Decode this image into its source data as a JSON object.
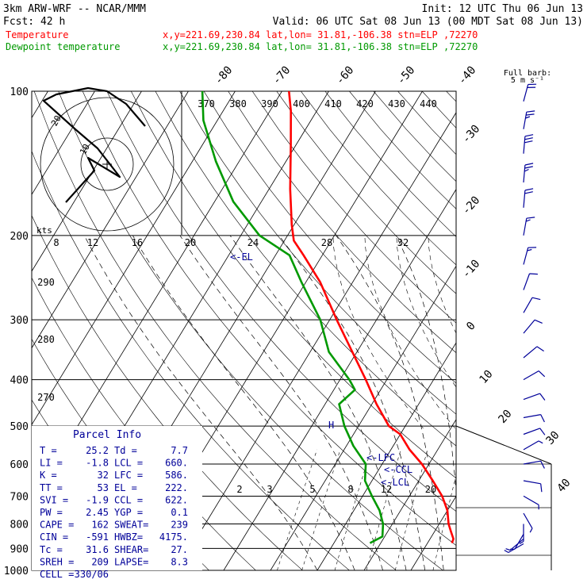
{
  "header": {
    "model": "3km ARW-WRF -- NCAR/MMM",
    "init": "Init: 12 UTC Thu 06 Jun 13",
    "fcst": "Fcst:   42 h",
    "valid": "Valid: 06 UTC Sat 08 Jun 13 (00 MDT Sat 08 Jun 13)",
    "legend": [
      {
        "label": "Temperature",
        "color": "#ff0000",
        "info": "x,y=221.69,230.84   lat,lon= 31.81,-106.38   stn=ELP ,72270"
      },
      {
        "label": "Dewpoint temperature",
        "color": "#009900",
        "info": "x,y=221.69,230.84   lat,lon= 31.81,-106.38   stn=ELP ,72270"
      }
    ]
  },
  "full_barb": {
    "line1": "Full barb:",
    "line2": "5 m s⁻¹"
  },
  "hodograph": {
    "unit_label": "kts",
    "ring_labels": [
      "10",
      "20"
    ]
  },
  "parcel": {
    "title": "Parcel Info",
    "rows": [
      [
        "T  =",
        "25.2",
        "Td =",
        "7.7"
      ],
      [
        "LI =",
        "-1.8",
        "LCL =",
        "660."
      ],
      [
        "K  =",
        "32",
        "LFC =",
        "586."
      ],
      [
        "TT =",
        "53",
        "EL =",
        "222."
      ],
      [
        "SVI =",
        "-1.9",
        "CCL =",
        "622."
      ],
      [
        "PW =",
        "2.45",
        "YGP =",
        "0.1"
      ],
      [
        "CAPE =",
        "162",
        "SWEAT=",
        "239"
      ],
      [
        "CIN =",
        "-591",
        "HWBZ=",
        "4175."
      ],
      [
        "Tc =",
        "31.6",
        "SHEAR=",
        "27."
      ],
      [
        "SREH =",
        "209",
        "LAPSE=",
        "8.3"
      ],
      [
        "CELL =",
        "330/06",
        "",
        ""
      ]
    ]
  },
  "chart_data": {
    "type": "line",
    "chart_kind": "skew-T log-p sounding",
    "pressure_levels": [
      100,
      200,
      300,
      400,
      500,
      600,
      700,
      800,
      900,
      1000
    ],
    "pressure_range": [
      100,
      1000
    ],
    "isotherm_labels": [
      -80,
      -70,
      -60,
      -50,
      -40,
      -30,
      -20,
      -10,
      0,
      10,
      20,
      30,
      40
    ],
    "theta_labels": [
      370,
      380,
      390,
      400,
      410,
      420,
      430,
      440
    ],
    "theta_left_labels": [
      290,
      280,
      270
    ],
    "mixing_ratio_labels": [
      "8",
      "12",
      "16",
      "20",
      "24",
      "28",
      "32"
    ],
    "mixing_ratio_low_labels": [
      "2",
      "3",
      "5",
      "8",
      "12",
      "20"
    ],
    "annotations": [
      "<-EL",
      "<-LFC",
      "<-CCL",
      "<-LCL",
      "H"
    ],
    "series": [
      {
        "name": "Temperature",
        "color": "#ff0000",
        "points": [
          [
            877,
            25.2
          ],
          [
            860,
            25.0
          ],
          [
            830,
            23.5
          ],
          [
            800,
            22.0
          ],
          [
            750,
            20.0
          ],
          [
            700,
            17.0
          ],
          [
            650,
            13.0
          ],
          [
            600,
            8.5
          ],
          [
            560,
            4.0
          ],
          [
            520,
            0.0
          ],
          [
            500,
            -3.5
          ],
          [
            450,
            -9.0
          ],
          [
            400,
            -14.5
          ],
          [
            350,
            -21.0
          ],
          [
            300,
            -28.5
          ],
          [
            250,
            -37.0
          ],
          [
            220,
            -44.0
          ],
          [
            205,
            -48.0
          ],
          [
            190,
            -50.5
          ],
          [
            160,
            -55.5
          ],
          [
            130,
            -61.0
          ],
          [
            110,
            -65.5
          ],
          [
            100,
            -68.5
          ]
        ]
      },
      {
        "name": "Dewpoint temperature",
        "color": "#009900",
        "points": [
          [
            877,
            7.7
          ],
          [
            850,
            9.5
          ],
          [
            800,
            8.0
          ],
          [
            750,
            5.5
          ],
          [
            700,
            2.0
          ],
          [
            650,
            -1.5
          ],
          [
            600,
            -3.5
          ],
          [
            550,
            -8.5
          ],
          [
            500,
            -13.0
          ],
          [
            450,
            -17.0
          ],
          [
            420,
            -15.5
          ],
          [
            400,
            -18.0
          ],
          [
            350,
            -26.0
          ],
          [
            300,
            -32.0
          ],
          [
            250,
            -41.0
          ],
          [
            220,
            -47.0
          ],
          [
            200,
            -56.0
          ],
          [
            170,
            -66.0
          ],
          [
            140,
            -75.0
          ],
          [
            115,
            -83.0
          ],
          [
            100,
            -87.0
          ]
        ]
      }
    ],
    "hodograph_uv": [
      [
        -13,
        -12
      ],
      [
        -4,
        -2
      ],
      [
        -6,
        2
      ],
      [
        4,
        -4
      ],
      [
        -3,
        5
      ],
      [
        -10,
        11
      ],
      [
        -20,
        20
      ],
      [
        -16,
        22
      ],
      [
        -6,
        24
      ],
      [
        0,
        23
      ],
      [
        6,
        19
      ],
      [
        12,
        12
      ]
    ],
    "wind_barbs": [
      {
        "p": 880,
        "dir": 240,
        "spd": 5
      },
      {
        "p": 860,
        "dir": 230,
        "spd": 5
      },
      {
        "p": 840,
        "dir": 210,
        "spd": 5
      },
      {
        "p": 800,
        "dir": 180,
        "spd": 5
      },
      {
        "p": 760,
        "dir": 150,
        "spd": 5
      },
      {
        "p": 700,
        "dir": 120,
        "spd": 5
      },
      {
        "p": 650,
        "dir": 100,
        "spd": 10
      },
      {
        "p": 600,
        "dir": 80,
        "spd": 10
      },
      {
        "p": 560,
        "dir": 60,
        "spd": 5
      },
      {
        "p": 520,
        "dir": 70,
        "spd": 10
      },
      {
        "p": 480,
        "dir": 80,
        "spd": 10
      },
      {
        "p": 440,
        "dir": 70,
        "spd": 10
      },
      {
        "p": 400,
        "dir": 60,
        "spd": 10
      },
      {
        "p": 360,
        "dir": 50,
        "spd": 10
      },
      {
        "p": 320,
        "dir": 40,
        "spd": 10
      },
      {
        "p": 290,
        "dir": 30,
        "spd": 10
      },
      {
        "p": 260,
        "dir": 20,
        "spd": 10
      },
      {
        "p": 230,
        "dir": 15,
        "spd": 15
      },
      {
        "p": 200,
        "dir": 10,
        "spd": 15
      },
      {
        "p": 175,
        "dir": 5,
        "spd": 20
      },
      {
        "p": 155,
        "dir": 5,
        "spd": 25
      },
      {
        "p": 135,
        "dir": 5,
        "spd": 30
      },
      {
        "p": 120,
        "dir": 10,
        "spd": 25
      },
      {
        "p": 105,
        "dir": 15,
        "spd": 20
      }
    ]
  }
}
